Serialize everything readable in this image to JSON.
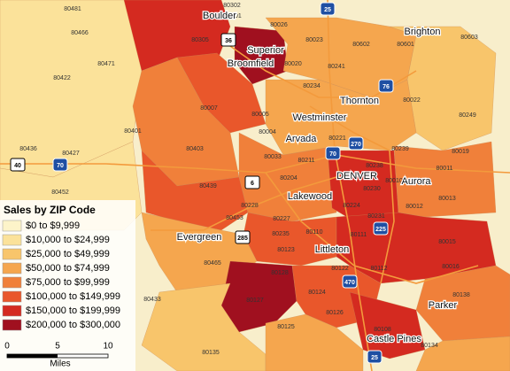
{
  "legend": {
    "title": "Sales by ZIP Code",
    "items": [
      {
        "label": "$0 to $9,999",
        "color": "#fdf4c9"
      },
      {
        "label": "$10,000 to $24,999",
        "color": "#fbe29a"
      },
      {
        "label": "$25,000 to $49,999",
        "color": "#f8c56b"
      },
      {
        "label": "$50,000 to $74,999",
        "color": "#f5a64e"
      },
      {
        "label": "$75,000 to $99,999",
        "color": "#f0803a"
      },
      {
        "label": "$100,000 to $149,999",
        "color": "#e9572b"
      },
      {
        "label": "$150,000 to $199,999",
        "color": "#d42a20"
      },
      {
        "label": "$200,000 to $300,000",
        "color": "#a0101f"
      }
    ]
  },
  "cities": [
    "Boulder",
    "Superior",
    "Broomfield",
    "Brighton",
    "Thornton",
    "Westminster",
    "Arvada",
    "DENVER",
    "Aurora",
    "Lakewood",
    "Evergreen",
    "Littleton",
    "Parker",
    "Castle Pines"
  ],
  "zip_codes": [
    "80481",
    "80302",
    "80301",
    "80466",
    "80026",
    "80023",
    "80602",
    "80601",
    "80603",
    "80305",
    "80020",
    "80241",
    "80471",
    "80422",
    "80403",
    "80007",
    "80005",
    "80234",
    "80221",
    "80022",
    "80249",
    "80004",
    "80427",
    "80436",
    "80401",
    "80033",
    "80211",
    "80238",
    "80239",
    "80011",
    "80019",
    "80452",
    "80204",
    "80230",
    "80010",
    "80439",
    "80228",
    "80227",
    "80224",
    "80231",
    "80012",
    "80013",
    "80453",
    "80235",
    "80110",
    "80111",
    "80015",
    "80465",
    "80123",
    "80122",
    "80112",
    "80016",
    "80433",
    "80128",
    "80124",
    "80127",
    "80138",
    "80126",
    "80134",
    "80108",
    "80125",
    "80135"
  ],
  "highways": [
    "25",
    "36",
    "76",
    "270",
    "70",
    "70",
    "40",
    "6",
    "285",
    "225",
    "470",
    "25"
  ],
  "scale": {
    "ticks": [
      "0",
      "5",
      "10"
    ],
    "unit": "Miles"
  }
}
